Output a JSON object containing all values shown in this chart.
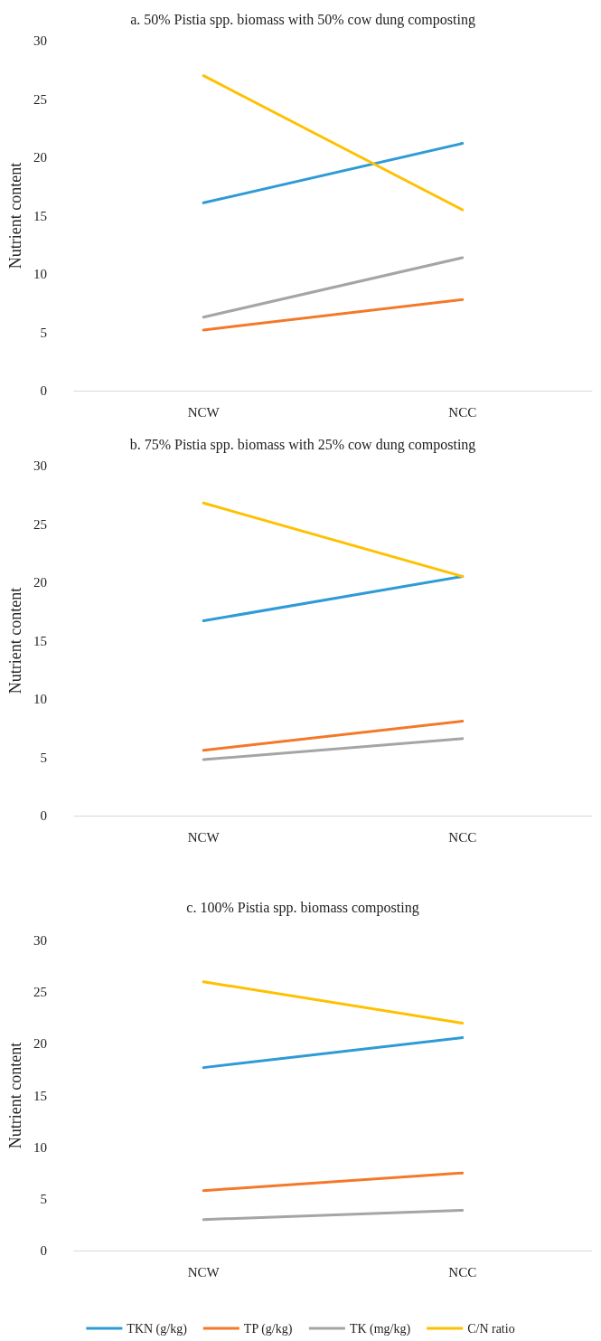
{
  "chart_data": [
    {
      "type": "line",
      "title": "a. 50% Pistia spp. biomass with 50% cow dung composting",
      "ylabel": "Nutrient content",
      "categories": [
        "NCW",
        "NCC"
      ],
      "ylim": [
        0,
        30
      ],
      "yticks": [
        0,
        5,
        10,
        15,
        20,
        25,
        30
      ],
      "grid": false,
      "legend": false,
      "marker": "none",
      "series": [
        {
          "color": "#2e9bd6",
          "values": [
            16.1,
            21.2
          ]
        },
        {
          "color": "#f4782a",
          "values": [
            5.2,
            7.8
          ]
        },
        {
          "color": "#a5a5a5",
          "values": [
            6.3,
            11.4
          ]
        },
        {
          "color": "#ffc000",
          "values": [
            27.0,
            15.5
          ]
        }
      ]
    },
    {
      "type": "line",
      "title": "b. 75% Pistia spp. biomass with 25% cow dung composting",
      "ylabel": "Nutrient content",
      "categories": [
        "NCW",
        "NCC"
      ],
      "ylim": [
        0,
        30
      ],
      "yticks": [
        0,
        5,
        10,
        15,
        20,
        25,
        30
      ],
      "grid": false,
      "legend": false,
      "marker": "none",
      "series": [
        {
          "color": "#2e9bd6",
          "values": [
            16.7,
            20.5
          ]
        },
        {
          "color": "#f4782a",
          "values": [
            5.6,
            8.1
          ]
        },
        {
          "color": "#a5a5a5",
          "values": [
            4.8,
            6.6
          ]
        },
        {
          "color": "#ffc000",
          "values": [
            26.8,
            20.5
          ]
        }
      ]
    },
    {
      "type": "line",
      "title": "c. 100% Pistia spp. biomass composting",
      "ylabel": "Nutrient content",
      "categories": [
        "NCW",
        "NCC"
      ],
      "ylim": [
        0,
        30
      ],
      "yticks": [
        0,
        5,
        10,
        15,
        20,
        25,
        30
      ],
      "grid": false,
      "legend": "bottom",
      "marker": "none",
      "series": [
        {
          "name": "TKN (g/kg)",
          "color": "#2e9bd6",
          "values": [
            17.7,
            20.6
          ]
        },
        {
          "name": "TP (g/kg)",
          "color": "#f4782a",
          "values": [
            5.8,
            7.5
          ]
        },
        {
          "name": "TK (mg/kg)",
          "color": "#a5a5a5",
          "values": [
            3.0,
            3.9
          ]
        },
        {
          "name": "C/N ratio",
          "color": "#ffc000",
          "values": [
            26.0,
            22.0
          ]
        }
      ]
    }
  ]
}
